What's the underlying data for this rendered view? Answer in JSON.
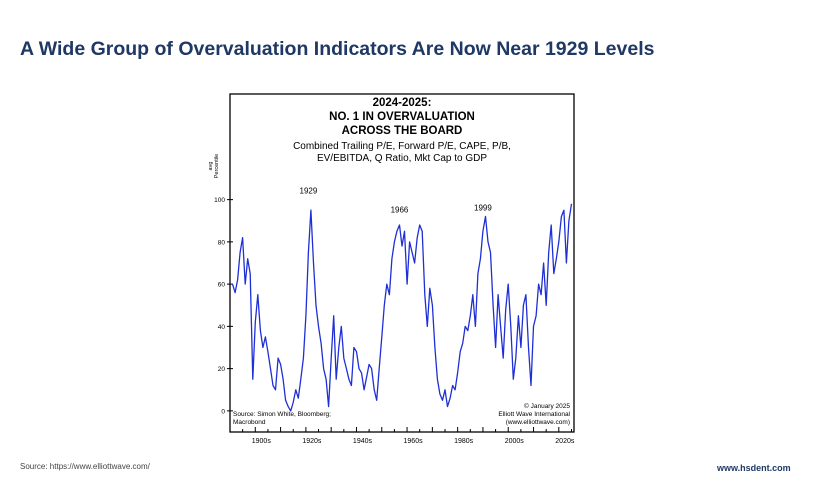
{
  "page": {
    "title": "A Wide Group of Overvaluation Indicators Are Now Near 1929 Levels",
    "source": "Source: https://www.elliottwave.com/",
    "site": "www.hsdent.com"
  },
  "colors": {
    "title": "#1f3864",
    "line": "#1f2fd6",
    "frame": "#000000"
  },
  "chart_data": {
    "type": "line",
    "title_lines": [
      "2024-2025:",
      "NO. 1 IN OVERVALUATION",
      "ACROSS THE BOARD"
    ],
    "subtitle_lines": [
      "Combined Trailing P/E, Forward P/E, CAPE, P/B,",
      "EV/EBITDA, Q Ratio, Mkt Cap to GDP"
    ],
    "ylabel_lines": [
      "avg",
      "Percentile"
    ],
    "ylim": [
      -10,
      150
    ],
    "yticks": [
      0,
      20,
      40,
      60,
      80,
      100
    ],
    "ytick_labels": [
      "0",
      "20",
      "40",
      "60",
      "80",
      "100"
    ],
    "xlim": [
      1890,
      2026
    ],
    "xticks": [
      1900,
      1920,
      1940,
      1960,
      1980,
      2000,
      2020
    ],
    "xtick_labels": [
      "1900s",
      "1920s",
      "1940s",
      "1960s",
      "1980s",
      "2000s",
      "2020s"
    ],
    "annotations": [
      {
        "text": "1929",
        "x": 1921,
        "y": 100
      },
      {
        "text": "1966",
        "x": 1957,
        "y": 91
      },
      {
        "text": "1999",
        "x": 1990,
        "y": 92
      }
    ],
    "source_lines": [
      "Source: Simon White, Bloomberg;",
      "Macrobond"
    ],
    "credit_lines": [
      "© January 2025",
      "Elliott Wave International",
      "(www.elliottwave.com)"
    ],
    "series": [
      {
        "name": "Average Percentile",
        "x": [
          1891,
          1892,
          1893,
          1894,
          1895,
          1896,
          1897,
          1898,
          1899,
          1900,
          1901,
          1902,
          1903,
          1904,
          1905,
          1906,
          1907,
          1908,
          1909,
          1910,
          1911,
          1912,
          1913,
          1914,
          1915,
          1916,
          1917,
          1918,
          1919,
          1920,
          1921,
          1922,
          1923,
          1924,
          1925,
          1926,
          1927,
          1928,
          1929,
          1930,
          1931,
          1932,
          1933,
          1934,
          1935,
          1936,
          1937,
          1938,
          1939,
          1940,
          1941,
          1942,
          1943,
          1944,
          1945,
          1946,
          1947,
          1948,
          1949,
          1950,
          1951,
          1952,
          1953,
          1954,
          1955,
          1956,
          1957,
          1958,
          1959,
          1960,
          1961,
          1962,
          1963,
          1964,
          1965,
          1966,
          1967,
          1968,
          1969,
          1970,
          1971,
          1972,
          1973,
          1974,
          1975,
          1976,
          1977,
          1978,
          1979,
          1980,
          1981,
          1982,
          1983,
          1984,
          1985,
          1986,
          1987,
          1988,
          1989,
          1990,
          1991,
          1992,
          1993,
          1994,
          1995,
          1996,
          1997,
          1998,
          1999,
          2000,
          2001,
          2002,
          2003,
          2004,
          2005,
          2006,
          2007,
          2008,
          2009,
          2010,
          2011,
          2012,
          2013,
          2014,
          2015,
          2016,
          2017,
          2018,
          2019,
          2020,
          2021,
          2022,
          2023,
          2024,
          2025
        ],
        "y": [
          60,
          56,
          62,
          75,
          82,
          60,
          72,
          65,
          15,
          42,
          55,
          38,
          30,
          35,
          28,
          20,
          12,
          10,
          25,
          22,
          15,
          5,
          2,
          0,
          4,
          10,
          6,
          15,
          25,
          45,
          75,
          95,
          70,
          50,
          40,
          32,
          20,
          15,
          2,
          25,
          45,
          15,
          30,
          40,
          25,
          20,
          15,
          12,
          30,
          28,
          20,
          18,
          10,
          16,
          22,
          20,
          10,
          5,
          20,
          35,
          50,
          60,
          55,
          72,
          80,
          85,
          88,
          78,
          85,
          60,
          80,
          75,
          70,
          82,
          88,
          85,
          55,
          40,
          58,
          50,
          30,
          15,
          8,
          5,
          10,
          2,
          6,
          12,
          10,
          18,
          28,
          32,
          40,
          38,
          45,
          55,
          40,
          65,
          72,
          85,
          92,
          80,
          75,
          50,
          30,
          55,
          40,
          25,
          48,
          60,
          40,
          15,
          25,
          45,
          30,
          50,
          55,
          30,
          12,
          40,
          45,
          60,
          55,
          70,
          50,
          75,
          88,
          65,
          72,
          80,
          92,
          95,
          70,
          90,
          98
        ]
      }
    ]
  }
}
